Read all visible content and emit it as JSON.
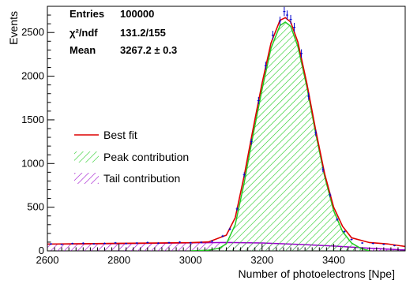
{
  "chart_data": {
    "type": "histogram",
    "title": "",
    "xlabel": "Number of photoelectrons [Npe]",
    "ylabel": "Events",
    "xlim": [
      2600,
      3600
    ],
    "ylim": [
      0,
      2800
    ],
    "x_ticks": [
      2600,
      2800,
      3000,
      3200,
      3400
    ],
    "x_tick_labels": [
      "2600",
      "2800",
      "3000",
      "3200",
      "3400"
    ],
    "y_ticks": [
      0,
      500,
      1000,
      1500,
      2000,
      2500
    ],
    "y_tick_labels": [
      "0",
      "500",
      "1000",
      "1500",
      "2000",
      "2500"
    ],
    "grid": false,
    "stats": [
      {
        "label": "Entries",
        "value": "100000"
      },
      {
        "label": "χ²/ndf",
        "value": "131.2/155"
      },
      {
        "label": "Mean",
        "value": "3267.2 ± 0.3"
      }
    ],
    "legend_position": "middle-left",
    "series": [
      {
        "name": "Best fit",
        "color": "#dd0000",
        "style": "line",
        "x": [
          2600,
          2700,
          2800,
          2900,
          3000,
          3050,
          3100,
          3125,
          3150,
          3175,
          3200,
          3225,
          3250,
          3265,
          3280,
          3300,
          3325,
          3350,
          3375,
          3400,
          3425,
          3450,
          3500,
          3550,
          3600
        ],
        "y": [
          78,
          82,
          86,
          90,
          94,
          102,
          180,
          380,
          860,
          1400,
          1920,
          2380,
          2640,
          2670,
          2620,
          2390,
          1920,
          1380,
          880,
          500,
          280,
          150,
          95,
          80,
          50
        ]
      },
      {
        "name": "Peak contribution",
        "color": "#22cc22",
        "style": "hatched",
        "x": [
          3000,
          3050,
          3080,
          3100,
          3125,
          3150,
          3175,
          3200,
          3225,
          3250,
          3265,
          3280,
          3300,
          3325,
          3350,
          3375,
          3400,
          3425,
          3450,
          3475,
          3500
        ],
        "y": [
          0,
          8,
          30,
          80,
          300,
          780,
          1330,
          1850,
          2320,
          2580,
          2620,
          2570,
          2340,
          1880,
          1340,
          850,
          460,
          220,
          90,
          30,
          0
        ]
      },
      {
        "name": "Tail contribution",
        "color": "#9900cc",
        "style": "hatched",
        "x": [
          2600,
          2800,
          3000,
          3100,
          3200,
          3300,
          3400,
          3500,
          3600
        ],
        "y": [
          78,
          82,
          92,
          96,
          90,
          75,
          55,
          30,
          10
        ]
      }
    ],
    "data_points": {
      "color": "#0000cc",
      "x": [
        2610,
        2640,
        2670,
        2700,
        2730,
        2760,
        2790,
        2820,
        2850,
        2880,
        2910,
        2940,
        2970,
        3000,
        3030,
        3060,
        3090,
        3110,
        3130,
        3150,
        3170,
        3190,
        3210,
        3230,
        3250,
        3262,
        3270,
        3280,
        3290,
        3310,
        3330,
        3350,
        3370,
        3390,
        3410,
        3430,
        3450,
        3480,
        3510,
        3540,
        3570
      ],
      "y": [
        80,
        74,
        84,
        88,
        80,
        86,
        92,
        84,
        90,
        96,
        88,
        94,
        100,
        92,
        98,
        110,
        170,
        250,
        480,
        870,
        1250,
        1720,
        2120,
        2470,
        2630,
        2740,
        2700,
        2650,
        2560,
        2260,
        1770,
        1350,
        930,
        640,
        360,
        220,
        130,
        90,
        85,
        75,
        60
      ]
    }
  }
}
